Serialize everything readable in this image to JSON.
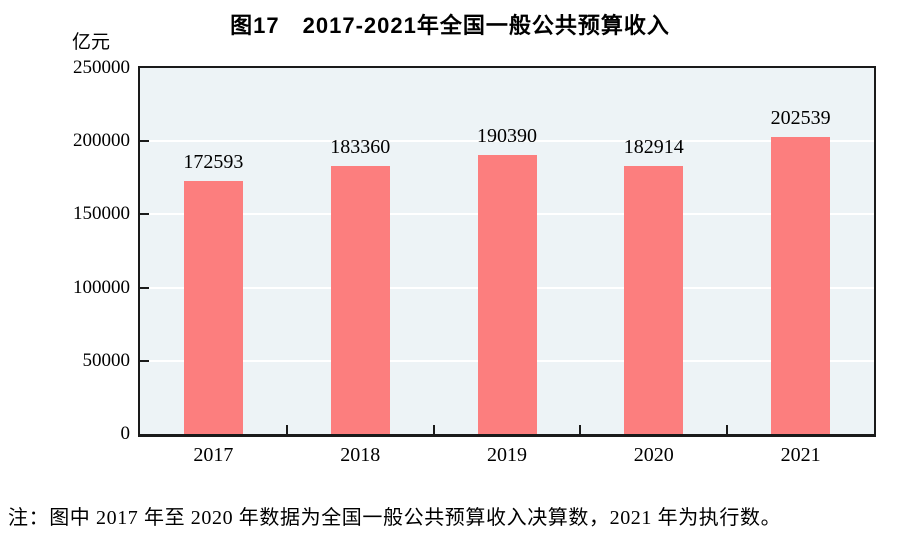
{
  "figure": {
    "title": "图17　2017-2021年全国一般公共预算收入",
    "note": "注：图中 2017 年至 2020 年数据为全国一般公共预算收入决算数，2021 年为执行数。"
  },
  "chart_data": {
    "type": "bar",
    "title": "图17　2017-2021年全国一般公共预算收入",
    "unit_label": "亿元",
    "categories": [
      "2017",
      "2018",
      "2019",
      "2020",
      "2021"
    ],
    "values": [
      172593,
      183360,
      190390,
      182914,
      202539
    ],
    "value_labels": [
      "172593",
      "183360",
      "190390",
      "182914",
      "202539"
    ],
    "xlabel": "",
    "ylabel": "亿元",
    "ylim": [
      0,
      250000
    ],
    "yticks": [
      0,
      50000,
      100000,
      150000,
      200000,
      250000
    ],
    "ytick_labels": [
      "0",
      "50000",
      "100000",
      "150000",
      "200000",
      "250000"
    ],
    "grid": true,
    "legend": false,
    "note": "注：图中 2017 年至 2020 年数据为全国一般公共预算收入决算数，2021 年为执行数。",
    "colors": {
      "bar": "#FC7E7E",
      "plot_background": "#EDF3F6",
      "gridline": "#FFFFFF",
      "axis": "#1A1A1A",
      "text": "#000000"
    }
  }
}
